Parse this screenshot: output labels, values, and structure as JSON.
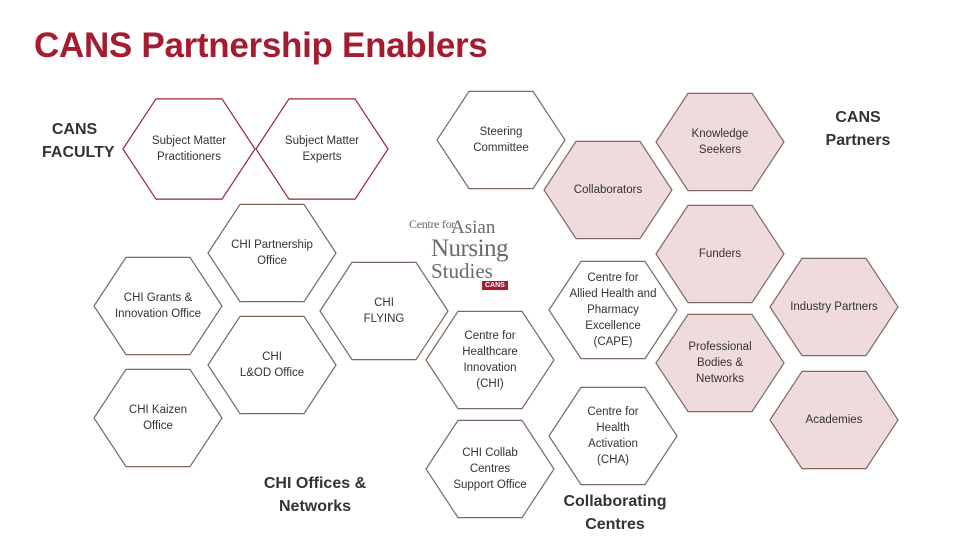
{
  "title": "CANS Partnership Enablers",
  "headings": {
    "cans_faculty": "CANS\nFACULTY",
    "cans_partners": "CANS\nPartners",
    "chi_offices": "CHI Offices &\nNetworks",
    "collaborating_centres": "Collaborating\nCentres"
  },
  "logo": {
    "line1": "Centre for",
    "line2": "Asian",
    "line3": "Nursing",
    "line4": "Studies",
    "badge": "CANS"
  },
  "colors": {
    "accent": "#a51c30",
    "outline_brown": "#7d6a5f",
    "outline_red": "#9b2335",
    "pink_fill": "#efdadd"
  },
  "hexagons": [
    {
      "key": "subject-matter-practitioners",
      "label": "Subject Matter\nPractitioners",
      "style": "red-outline"
    },
    {
      "key": "subject-matter-experts",
      "label": "Subject Matter\nExperts",
      "style": "red-outline"
    },
    {
      "key": "chi-partnership-office",
      "label": "CHI Partnership\nOffice",
      "style": "outline"
    },
    {
      "key": "chi-grants-innovation-office",
      "label": "CHI Grants &\nInnovation Office",
      "style": "outline"
    },
    {
      "key": "chi-flying",
      "label": "CHI\nFLYING",
      "style": "outline"
    },
    {
      "key": "chi-lod-office",
      "label": "CHI\nL&OD Office",
      "style": "outline"
    },
    {
      "key": "chi-kaizen-office",
      "label": "CHI Kaizen\nOffice",
      "style": "outline"
    },
    {
      "key": "steering-committee",
      "label": "Steering\nCommittee",
      "style": "outline"
    },
    {
      "key": "collaborators",
      "label": "Collaborators",
      "style": "pink"
    },
    {
      "key": "centre-allied-health",
      "label": "Centre for\nAllied Health and\nPharmacy\nExcellence\n(CAPE)",
      "style": "outline"
    },
    {
      "key": "centre-healthcare-innovation",
      "label": "Centre for\nHealthcare\nInnovation\n(CHI)",
      "style": "outline"
    },
    {
      "key": "chi-collab-centres",
      "label": "CHI Collab\nCentres\nSupport Office",
      "style": "outline"
    },
    {
      "key": "centre-health-activation",
      "label": "Centre for\nHealth\nActivation\n(CHA)",
      "style": "outline"
    },
    {
      "key": "knowledge-seekers",
      "label": "Knowledge\nSeekers",
      "style": "pink"
    },
    {
      "key": "funders",
      "label": "Funders",
      "style": "pink"
    },
    {
      "key": "industry-partners",
      "label": "Industry Partners",
      "style": "pink"
    },
    {
      "key": "professional-bodies",
      "label": "Professional\nBodies &\nNetworks",
      "style": "pink"
    },
    {
      "key": "academies",
      "label": "Academies",
      "style": "pink"
    }
  ]
}
